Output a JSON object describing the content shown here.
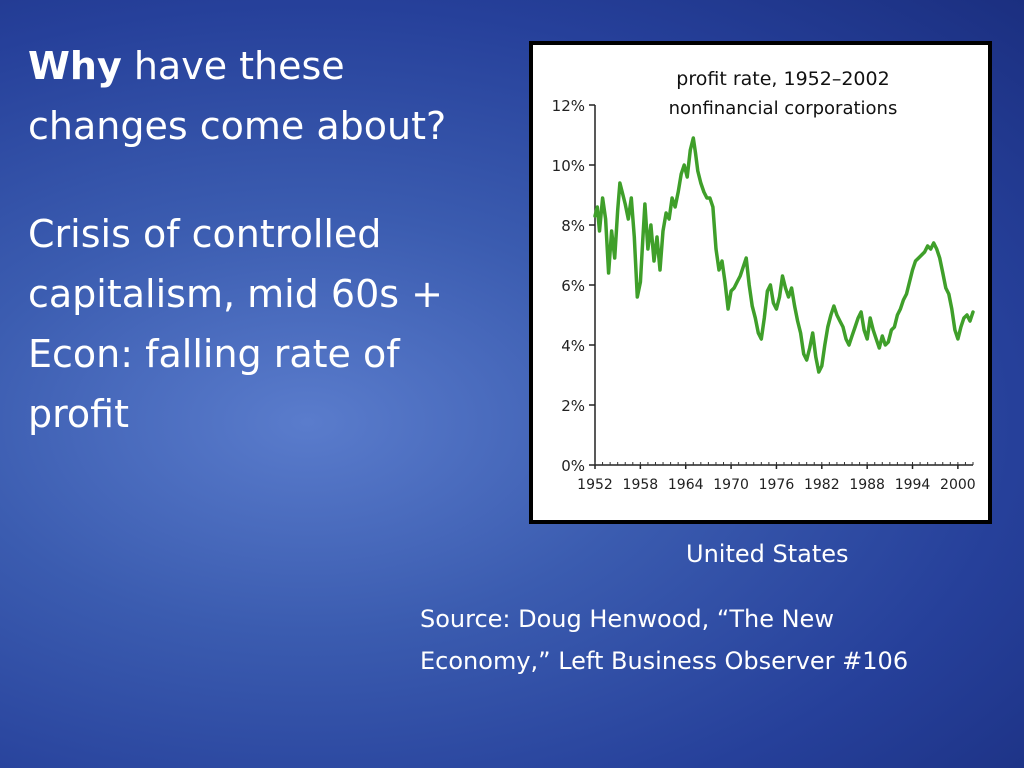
{
  "slide": {
    "heading_bold": "Why",
    "heading_rest": " have these changes come about?",
    "body_lines": [
      "Crisis of controlled",
      "capitalism, mid 60s +",
      "Econ: falling rate of",
      "profit"
    ],
    "caption": "United States",
    "source_lines": [
      "Source: Doug Henwood, “The New",
      "Economy,”  Left Business Observer #106"
    ]
  },
  "chart_data": {
    "type": "line",
    "title": "profit rate, 1952–2002",
    "subtitle": "nonfinancial corporations",
    "xlabel": "",
    "ylabel": "",
    "xlim": [
      1952,
      2002
    ],
    "ylim": [
      0,
      12
    ],
    "y_ticks": [
      "0%",
      "2%",
      "4%",
      "6%",
      "8%",
      "10%",
      "12%"
    ],
    "x_ticks": [
      "1952",
      "1958",
      "1964",
      "1970",
      "1976",
      "1982",
      "1988",
      "1994",
      "2000"
    ],
    "color": "#3f9f2a",
    "series": [
      {
        "x": [
          1952.0,
          1952.3,
          1952.6,
          1953.0,
          1953.4,
          1953.8,
          1954.2,
          1954.6,
          1955.0,
          1955.3,
          1955.6,
          1956.0,
          1956.4,
          1956.8,
          1957.2,
          1957.6,
          1958.0,
          1958.3,
          1958.6,
          1959.0,
          1959.4,
          1959.8,
          1960.2,
          1960.6,
          1961.0,
          1961.4,
          1961.8,
          1962.2,
          1962.6,
          1963.0,
          1963.4,
          1963.8,
          1964.2,
          1964.6,
          1965.0,
          1965.3,
          1965.6,
          1966.0,
          1966.4,
          1966.8,
          1967.2,
          1967.6,
          1968.0,
          1968.4,
          1968.8,
          1969.2,
          1969.6,
          1970.0,
          1970.4,
          1970.8,
          1971.2,
          1971.6,
          1972.0,
          1972.4,
          1972.8,
          1973.2,
          1973.6,
          1974.0,
          1974.4,
          1974.8,
          1975.2,
          1975.6,
          1976.0,
          1976.4,
          1976.8,
          1977.2,
          1977.6,
          1978.0,
          1978.4,
          1978.8,
          1979.2,
          1979.6,
          1980.0,
          1980.4,
          1980.8,
          1981.2,
          1981.6,
          1982.0,
          1982.4,
          1982.8,
          1983.2,
          1983.6,
          1984.0,
          1984.4,
          1984.8,
          1985.2,
          1985.6,
          1986.0,
          1986.4,
          1986.8,
          1987.2,
          1987.6,
          1988.0,
          1988.4,
          1988.8,
          1989.2,
          1989.6,
          1990.0,
          1990.4,
          1990.8,
          1991.2,
          1991.6,
          1992.0,
          1992.4,
          1992.8,
          1993.2,
          1993.6,
          1994.0,
          1994.4,
          1994.8,
          1995.2,
          1995.6,
          1996.0,
          1996.4,
          1996.8,
          1997.2,
          1997.6,
          1998.0,
          1998.4,
          1998.8,
          1999.2,
          1999.6,
          2000.0,
          2000.4,
          2000.8,
          2001.2,
          2001.6,
          2002.0
        ],
        "values": [
          8.3,
          8.6,
          7.8,
          8.9,
          8.2,
          6.4,
          7.8,
          6.9,
          8.5,
          9.4,
          9.1,
          8.7,
          8.2,
          8.9,
          7.6,
          5.6,
          6.1,
          7.4,
          8.7,
          7.2,
          8.0,
          6.8,
          7.6,
          6.5,
          7.8,
          8.4,
          8.2,
          8.9,
          8.6,
          9.1,
          9.7,
          10.0,
          9.6,
          10.5,
          10.9,
          10.4,
          9.8,
          9.4,
          9.1,
          8.9,
          8.9,
          8.6,
          7.2,
          6.5,
          6.8,
          6.1,
          5.2,
          5.8,
          5.9,
          6.1,
          6.3,
          6.6,
          6.9,
          6.0,
          5.3,
          4.9,
          4.4,
          4.2,
          4.9,
          5.8,
          6.0,
          5.4,
          5.2,
          5.6,
          6.3,
          5.9,
          5.6,
          5.9,
          5.3,
          4.8,
          4.4,
          3.7,
          3.5,
          3.9,
          4.4,
          3.6,
          3.1,
          3.3,
          4.0,
          4.6,
          5.0,
          5.3,
          5.0,
          4.8,
          4.6,
          4.2,
          4.0,
          4.3,
          4.6,
          4.9,
          5.1,
          4.5,
          4.2,
          4.9,
          4.5,
          4.2,
          3.9,
          4.3,
          4.0,
          4.1,
          4.5,
          4.6,
          5.0,
          5.2,
          5.5,
          5.7,
          6.1,
          6.5,
          6.8,
          6.9,
          7.0,
          7.1,
          7.3,
          7.2,
          7.4,
          7.2,
          6.9,
          6.4,
          5.9,
          5.7,
          5.2,
          4.5,
          4.2,
          4.6,
          4.9,
          5.0,
          4.8,
          5.1
        ]
      }
    ]
  }
}
